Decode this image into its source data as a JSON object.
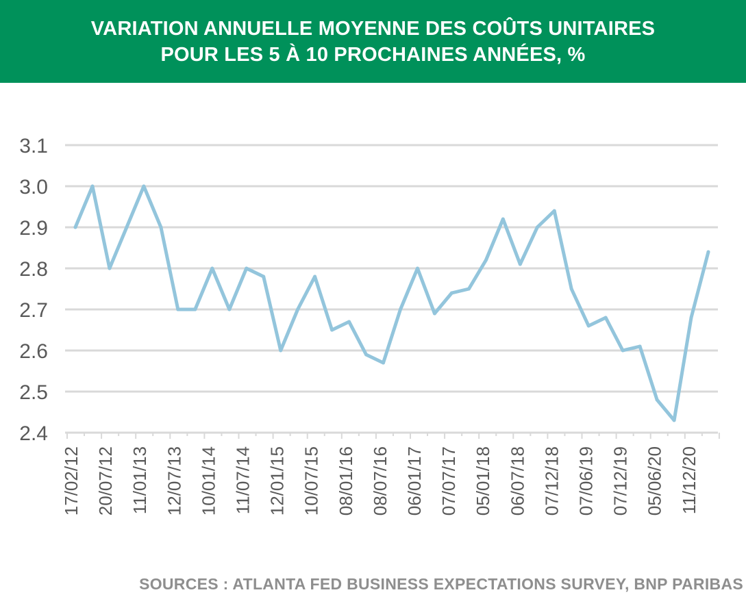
{
  "header": {
    "title_line1": "VARIATION ANNUELLE MOYENNE DES COÛTS UNITAIRES",
    "title_line2": "POUR LES 5 À 10 PROCHAINES ANNÉES, %"
  },
  "footer": {
    "source": "SOURCES : ATLANTA FED BUSINESS EXPECTATIONS SURVEY, BNP PARIBAS"
  },
  "colors": {
    "header_bg": "#00915a",
    "line": "#93c5dc",
    "grid": "#d9d9d9",
    "axis_text": "#595959",
    "source_text": "#8e8e8e"
  },
  "chart_data": {
    "type": "line",
    "title": "VARIATION ANNUELLE MOYENNE DES COÛTS UNITAIRES POUR LES 5 À 10 PROCHAINES ANNÉES, %",
    "ylim": [
      2.4,
      3.1
    ],
    "yticks": [
      "2.4",
      "2.5",
      "2.6",
      "2.7",
      "2.8",
      "2.9",
      "3.0",
      "3.1"
    ],
    "grid": true,
    "legend": "none",
    "xtick_labels": [
      "17/02/12",
      "20/07/12",
      "11/01/13",
      "12/07/13",
      "10/01/14",
      "11/07/14",
      "12/01/15",
      "10/07/15",
      "08/01/16",
      "08/07/16",
      "06/01/17",
      "07/07/17",
      "05/01/18",
      "06/07/18",
      "07/12/18",
      "07/06/19",
      "07/12/19",
      "05/06/20",
      "11/12/20"
    ],
    "values": [
      2.9,
      3.0,
      2.8,
      2.9,
      3.0,
      2.9,
      2.7,
      2.7,
      2.8,
      2.7,
      2.8,
      2.78,
      2.6,
      2.7,
      2.78,
      2.65,
      2.67,
      2.59,
      2.57,
      2.7,
      2.8,
      2.69,
      2.74,
      2.75,
      2.82,
      2.92,
      2.81,
      2.9,
      2.94,
      2.75,
      2.66,
      2.68,
      2.6,
      2.61,
      2.48,
      2.43,
      2.68,
      2.84
    ]
  }
}
